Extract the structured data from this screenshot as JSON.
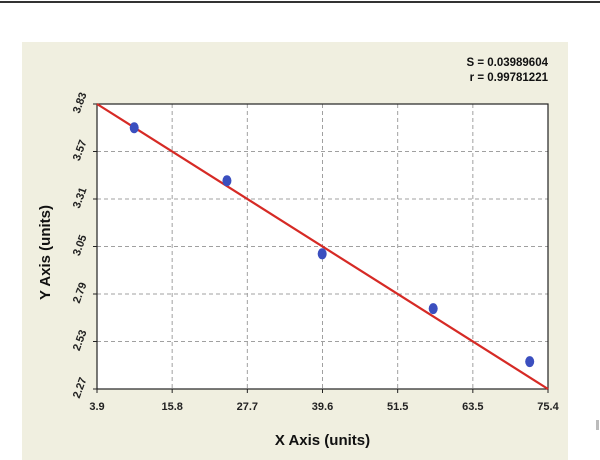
{
  "chart_data": {
    "type": "scatter",
    "title": "",
    "xlabel": "X Axis (units)",
    "ylabel": "Y Axis (units)",
    "xlim": [
      3.9,
      75.4
    ],
    "ylim": [
      2.27,
      3.83
    ],
    "xticks": [
      "3.9",
      "15.8",
      "27.7",
      "39.6",
      "51.5",
      "63.5",
      "75.4"
    ],
    "yticks": [
      "2.27",
      "2.53",
      "2.79",
      "3.05",
      "3.31",
      "3.57",
      "3.83"
    ],
    "grid": true,
    "stats": [
      "S = 0.03989604",
      "r = 0.99781221"
    ],
    "points": {
      "x": [
        9.8,
        24.5,
        39.6,
        57.2,
        72.5
      ],
      "y": [
        3.7,
        3.41,
        3.01,
        2.71,
        2.42
      ]
    },
    "fit_line": {
      "x": [
        3.9,
        75.4
      ],
      "y": [
        3.83,
        2.27
      ]
    },
    "colors": {
      "point": "#3b4fbf",
      "line": "#d62a25",
      "grid": "#a0a0a0",
      "background": "#f0efe0",
      "plot_area": "#ffffff"
    }
  }
}
